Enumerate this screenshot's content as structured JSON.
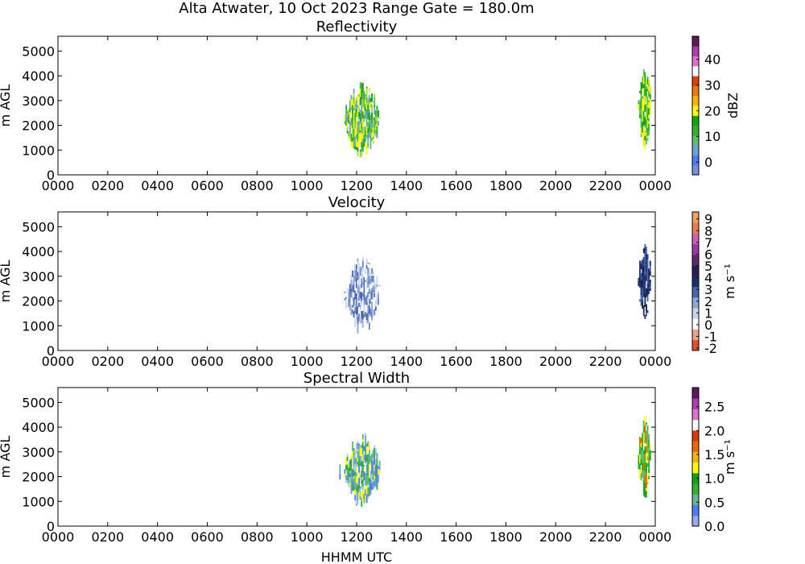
{
  "figure": {
    "suptitle": "Alta Atwater, 10 Oct 2023 Range Gate = 180.0m",
    "xlabel": "HHMM UTC"
  },
  "chart_data": [
    {
      "type": "heatmap",
      "title": "Reflectivity",
      "ylabel": "m AGL",
      "xlim": [
        0,
        2400
      ],
      "ylim": [
        0,
        5600
      ],
      "xticks": [
        "0000",
        "0200",
        "0400",
        "0600",
        "0800",
        "1000",
        "1200",
        "1400",
        "1600",
        "1800",
        "2000",
        "2200",
        "0000"
      ],
      "yticks": [
        "0",
        "1000",
        "2000",
        "3000",
        "4000",
        "5000"
      ],
      "colorbar": {
        "label": "dBZ",
        "range": [
          -5,
          49
        ],
        "ticks": [
          "0",
          "10",
          "20",
          "30",
          "40"
        ],
        "colors": [
          "#7b8fe0",
          "#4b7ef0",
          "#6fa0d8",
          "#5dbf6e",
          "#2fb22f",
          "#12a312",
          "#ffff00",
          "#f8b800",
          "#ee7a00",
          "#e04000",
          "#ffffff",
          "#e070c8",
          "#b03cb0",
          "#5a1a5a"
        ]
      },
      "clusters": [
        {
          "x_start": 1125,
          "x_end": 1135,
          "y_bottom": 1850,
          "y_top": 2550,
          "fill": [
            "#4caf50",
            "#66bb6a",
            "#6fa0d8"
          ]
        },
        {
          "x_start": 1150,
          "x_end": 1290,
          "y_bottom": 600,
          "y_top": 3800,
          "fill": [
            "#12a312",
            "#2fb22f",
            "#5dbf6e",
            "#a8d84a",
            "#ffff00",
            "#6fa0d8"
          ]
        },
        {
          "x_start": 2280,
          "x_end": 2290,
          "y_bottom": 3450,
          "y_top": 3750,
          "fill": [
            "#4b7ef0"
          ]
        },
        {
          "x_start": 2330,
          "x_end": 2380,
          "y_bottom": 1000,
          "y_top": 4500,
          "fill": [
            "#12a312",
            "#2fb22f",
            "#ffff00",
            "#d8e820",
            "#5dbf6e"
          ]
        }
      ]
    },
    {
      "type": "heatmap",
      "title": "Velocity",
      "ylabel": "m s⁻¹",
      "ylabel_left": "m AGL",
      "xlim": [
        0,
        2400
      ],
      "ylim": [
        0,
        5600
      ],
      "xticks": [
        "0000",
        "0200",
        "0400",
        "0600",
        "0800",
        "1000",
        "1200",
        "1400",
        "1600",
        "1800",
        "2000",
        "2200",
        "0000"
      ],
      "yticks": [
        "0",
        "1000",
        "2000",
        "3000",
        "4000",
        "5000"
      ],
      "colorbar": {
        "label": "m s⁻¹",
        "range": [
          -2.2,
          9.6
        ],
        "ticks": [
          "-2",
          "-1",
          "0",
          "1",
          "2",
          "3",
          "4",
          "5",
          "6",
          "7",
          "8",
          "9"
        ],
        "colors": [
          "#e05030",
          "#f0a090",
          "#ffffff",
          "#c8d4ec",
          "#8ea6d8",
          "#4a66b0",
          "#1e2e68",
          "#2a1a50",
          "#5a2a70",
          "#9a3aa0",
          "#d060b0",
          "#f07a50",
          "#f0a060"
        ]
      },
      "clusters": [
        {
          "x_start": 1135,
          "x_end": 1145,
          "y_bottom": 1800,
          "y_top": 2300,
          "fill": [
            "#ffffff",
            "#dde4f4"
          ]
        },
        {
          "x_start": 1150,
          "x_end": 1290,
          "y_bottom": 600,
          "y_top": 3800,
          "fill": [
            "#c8d4ec",
            "#8ea6d8",
            "#ffffff",
            "#4a66b0",
            "#6e88c4"
          ]
        },
        {
          "x_start": 2280,
          "x_end": 2290,
          "y_bottom": 3450,
          "y_top": 3750,
          "fill": [
            "#1e2e68"
          ]
        },
        {
          "x_start": 2330,
          "x_end": 2380,
          "y_bottom": 1000,
          "y_top": 4500,
          "fill": [
            "#1e2e68",
            "#2a3e80",
            "#4a66b0",
            "#16224e"
          ]
        }
      ]
    },
    {
      "type": "heatmap",
      "title": "Spectral Width",
      "ylabel": "m AGL",
      "xlim": [
        0,
        2400
      ],
      "ylim": [
        0,
        5600
      ],
      "xticks": [
        "0000",
        "0200",
        "0400",
        "0600",
        "0800",
        "1000",
        "1200",
        "1400",
        "1600",
        "1800",
        "2000",
        "2200",
        "0000"
      ],
      "yticks": [
        "0",
        "1000",
        "2000",
        "3000",
        "4000",
        "5000"
      ],
      "colorbar": {
        "label": "m s⁻¹",
        "range": [
          0,
          2.9
        ],
        "ticks": [
          "0.0",
          "0.5",
          "1.0",
          "1.5",
          "2.0",
          "2.5"
        ],
        "colors": [
          "#9aa8ec",
          "#4b7ef0",
          "#6fb0a0",
          "#2fb22f",
          "#12a312",
          "#ffff00",
          "#f8b800",
          "#ee6a00",
          "#e03a00",
          "#ffffff",
          "#e070c8",
          "#b03cb0",
          "#5a1a5a"
        ]
      },
      "clusters": [
        {
          "x_start": 1125,
          "x_end": 1135,
          "y_bottom": 1850,
          "y_top": 2550,
          "fill": [
            "#4b7ef0",
            "#6fa0d8"
          ]
        },
        {
          "x_start": 1150,
          "x_end": 1290,
          "y_bottom": 600,
          "y_top": 3800,
          "fill": [
            "#6fa0d8",
            "#4b7ef0",
            "#5dbf6e",
            "#2fb22f",
            "#ffff00",
            "#a8c8f0"
          ]
        },
        {
          "x_start": 2280,
          "x_end": 2290,
          "y_bottom": 3450,
          "y_top": 3750,
          "fill": [
            "#4b7ef0"
          ]
        },
        {
          "x_start": 2330,
          "x_end": 2380,
          "y_bottom": 1000,
          "y_top": 4500,
          "fill": [
            "#2fb22f",
            "#12a312",
            "#ffff00",
            "#ee6a00",
            "#5dbf6e"
          ]
        }
      ]
    }
  ]
}
